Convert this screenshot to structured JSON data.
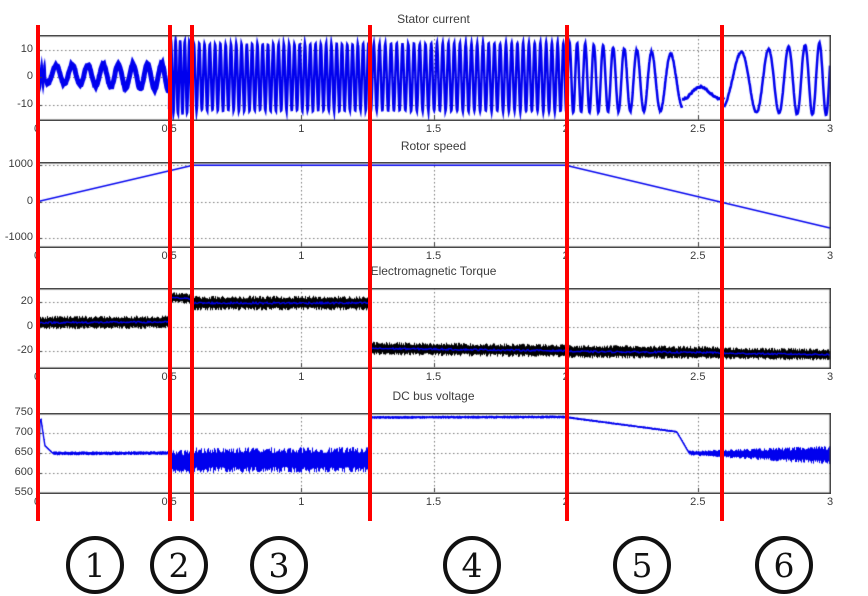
{
  "figure": {
    "background": "#ffffff",
    "description": "Four stacked simulation scopes (induction machine drive) divided into six operating stages by red vertical lines"
  },
  "stages": {
    "labels": [
      "1",
      "2",
      "3",
      "4",
      "5",
      "6"
    ],
    "circle_centers_x": [
      95,
      179,
      279,
      472,
      642,
      784
    ],
    "divider_times": [
      0.004,
      0.503,
      0.586,
      1.26,
      2.005,
      2.592
    ],
    "divider_color": "#ff0000"
  },
  "chart_data": [
    {
      "id": "stator-current",
      "type": "line",
      "title": "Stator current",
      "line_color": "#0000ee",
      "grid": true,
      "x": {
        "lim": [
          0,
          3
        ],
        "ticks": [
          0,
          0.5,
          1,
          1.5,
          2,
          2.5,
          3
        ],
        "tick_labels": [
          "0",
          "0.5",
          "1",
          "1.5",
          "2",
          "2.5",
          "3"
        ]
      },
      "y": {
        "lim": [
          -15.6,
          15.45
        ],
        "ticks": [
          10,
          0,
          -10
        ],
        "tick_labels": [
          "10",
          "0",
          "-10"
        ]
      },
      "signal": {
        "kind": "chirp_band",
        "segments": [
          {
            "t0": 0.004,
            "t1": 0.032,
            "f0": 90,
            "f1": 90,
            "a0": 4.8,
            "a1": 4.2,
            "m0": 0.6,
            "m1": 0.6,
            "lw": 2
          },
          {
            "t0": 0.032,
            "t1": 0.5,
            "f0": 16,
            "f1": 19,
            "a0": 3.2,
            "a1": 5.0,
            "m0": 1.2,
            "m1": 0,
            "lw": 5
          },
          {
            "t0": 0.5,
            "t1": 0.586,
            "f0": 58,
            "f1": 58,
            "a0": 13.5,
            "a1": 13,
            "m0": 0,
            "m1": 0,
            "lw": 2.5
          },
          {
            "t0": 0.586,
            "t1": 1.26,
            "f0": 50,
            "f1": 50,
            "a0": 12.2,
            "a1": 12.2,
            "m0": 0,
            "m1": 0,
            "lw": 2.5
          },
          {
            "t0": 1.26,
            "t1": 2.005,
            "f0": 46,
            "f1": 46,
            "a0": 12.2,
            "a1": 12.5,
            "m0": 0,
            "m1": 0,
            "lw": 2.5
          },
          {
            "t0": 2.005,
            "t1": 2.44,
            "f0": 36,
            "f1": 9,
            "a0": 13,
            "a1": 10,
            "m0": 0,
            "m1": -2,
            "lw": 2.5
          },
          {
            "t0": 2.44,
            "t1": 2.6,
            "f0": 8,
            "f1": 6,
            "a0": 2.5,
            "a1": 1.8,
            "m0": -5.5,
            "m1": -6,
            "lw": 3
          },
          {
            "t0": 2.6,
            "t1": 3.0,
            "f0": 5,
            "f1": 21,
            "a0": 10.5,
            "a1": 13.5,
            "m0": -2,
            "m1": -0.5,
            "lw": 2.5
          }
        ]
      }
    },
    {
      "id": "rotor-speed",
      "type": "line",
      "title": "Rotor speed",
      "line_color": "#0000ee",
      "grid": true,
      "x": {
        "lim": [
          0,
          3
        ],
        "ticks": [
          0,
          0.5,
          1,
          1.5,
          2,
          2.5,
          3
        ],
        "tick_labels": [
          "0",
          "0.5",
          "1",
          "1.5",
          "2",
          "2.5",
          "3"
        ]
      },
      "y": {
        "lim": [
          -1240,
          1090
        ],
        "ticks": [
          1000,
          0,
          -1000
        ],
        "tick_labels": [
          "1000",
          "0",
          "-1000"
        ]
      },
      "signal": {
        "kind": "polyline",
        "points": [
          [
            0,
            0
          ],
          [
            0.59,
            1000
          ],
          [
            2.0,
            1000
          ],
          [
            3.0,
            -720
          ]
        ]
      }
    },
    {
      "id": "electromagnetic-torque",
      "type": "line",
      "title": "Electromagnetic Torque",
      "line_color": "#0000ee",
      "grid": true,
      "x": {
        "lim": [
          0,
          3
        ],
        "ticks": [
          0,
          0.5,
          1,
          1.5,
          2,
          2.5,
          3
        ],
        "tick_labels": [
          "0",
          "0.5",
          "1",
          "1.5",
          "2",
          "2.5",
          "3"
        ]
      },
      "y": {
        "lim": [
          -33.5,
          31.8
        ],
        "ticks": [
          20,
          0,
          -20
        ],
        "tick_labels": [
          "20",
          "0",
          "-20"
        ]
      },
      "signal": {
        "kind": "noise_band",
        "band_color": "#000000",
        "mean_color": "#0000ee",
        "segments": [
          {
            "t0": 0,
            "t1": 0.5,
            "mean0": 3.5,
            "mean1": 4,
            "half": 5.5
          },
          {
            "t0": 0.5,
            "t1": 0.586,
            "mean0": 24,
            "mean1": 23,
            "half": 4.5
          },
          {
            "t0": 0.586,
            "t1": 1.26,
            "mean0": 19.5,
            "mean1": 19.5,
            "half": 6
          },
          {
            "t0": 1.26,
            "t1": 2.005,
            "mean0": -17.5,
            "mean1": -19.5,
            "half": 5.5
          },
          {
            "t0": 2.005,
            "t1": 2.592,
            "mean0": -20,
            "mean1": -21,
            "half": 5.5
          },
          {
            "t0": 2.592,
            "t1": 3.0,
            "mean0": -21.5,
            "mean1": -22.5,
            "half": 5
          }
        ]
      }
    },
    {
      "id": "dc-bus-voltage",
      "type": "line",
      "title": "DC bus voltage",
      "line_color": "#0000ee",
      "grid": true,
      "x": {
        "lim": [
          0,
          3
        ],
        "ticks": [
          0,
          0.5,
          1,
          1.5,
          2,
          2.5,
          3
        ],
        "tick_labels": [
          "0",
          "0.5",
          "1",
          "1.5",
          "2",
          "2.5",
          "3"
        ]
      },
      "y": {
        "lim": [
          550,
          750
        ],
        "ticks": [
          750,
          700,
          650,
          600,
          550
        ],
        "tick_labels": [
          "750",
          "700",
          "650",
          "600",
          "550"
        ]
      },
      "signal": {
        "kind": "noise_band",
        "band_color": "#0000ee",
        "mean_color": "#0000ee",
        "segments": [
          {
            "t0": 0.004,
            "t1": 0.012,
            "mean0": 560,
            "mean1": 748,
            "half": 1
          },
          {
            "t0": 0.012,
            "t1": 0.03,
            "mean0": 748,
            "mean1": 668,
            "half": 1.5
          },
          {
            "t0": 0.03,
            "t1": 0.06,
            "mean0": 668,
            "mean1": 649,
            "half": 2
          },
          {
            "t0": 0.06,
            "t1": 0.5,
            "mean0": 649,
            "mean1": 650,
            "half": 5
          },
          {
            "t0": 0.5,
            "t1": 0.586,
            "mean0": 628,
            "mean1": 628,
            "half": 30
          },
          {
            "t0": 0.586,
            "t1": 1.26,
            "mean0": 632,
            "mean1": 633,
            "half": 32
          },
          {
            "t0": 1.26,
            "t1": 2.005,
            "mean0": 739,
            "mean1": 740,
            "half": 4
          },
          {
            "t0": 2.005,
            "t1": 2.42,
            "mean0": 739,
            "mean1": 703,
            "half": 3
          },
          {
            "t0": 2.42,
            "t1": 2.465,
            "mean0": 703,
            "mean1": 652,
            "half": 2
          },
          {
            "t0": 2.465,
            "t1": 3.0,
            "mean0": 650,
            "mean1": 644,
            "half0": 6,
            "half1": 24
          }
        ]
      }
    }
  ]
}
